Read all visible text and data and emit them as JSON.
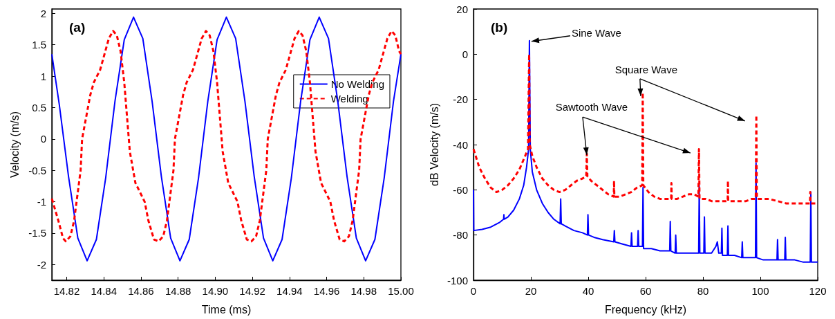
{
  "chart_data": [
    {
      "type": "line",
      "title": "(a)",
      "xlabel": "Time (ms)",
      "ylabel": "Velocity (m/s)",
      "xlim": [
        14.812,
        15.0
      ],
      "xticks": [
        14.82,
        14.84,
        14.86,
        14.88,
        {
          "value": 14.9,
          "label": "14.90"
        },
        14.92,
        14.94,
        14.96,
        14.98,
        {
          "value": 15.0,
          "label": "15.00"
        }
      ],
      "ylim": [
        -2.25,
        2.07
      ],
      "yticks": [
        -2,
        -1.5,
        -1,
        -0.5,
        0,
        0.5,
        1,
        1.5,
        2
      ],
      "grid": false,
      "legend": "right",
      "marker": "none",
      "series": [
        {
          "name": "No Welding",
          "color": "#0000ff",
          "line_style": "solid",
          "x": [
            14.812,
            14.816,
            14.821,
            14.826,
            14.831,
            14.836,
            14.841,
            14.846,
            14.851,
            14.856,
            14.861,
            14.866,
            14.871,
            14.876,
            14.881,
            14.886,
            14.891,
            14.896,
            14.901,
            14.906,
            14.911,
            14.916,
            14.921,
            14.926,
            14.931,
            14.936,
            14.941,
            14.946,
            14.951,
            14.956,
            14.961,
            14.966,
            14.971,
            14.976,
            14.981,
            14.986,
            14.991,
            14.996,
            15.0
          ],
          "values": [
            1.35,
            0.55,
            -0.6,
            -1.58,
            -1.94,
            -1.6,
            -0.62,
            0.6,
            1.58,
            1.94,
            1.6,
            0.6,
            -0.6,
            -1.58,
            -1.94,
            -1.6,
            -0.62,
            0.6,
            1.58,
            1.94,
            1.6,
            0.6,
            -0.6,
            -1.58,
            -1.94,
            -1.6,
            -0.62,
            0.6,
            1.58,
            1.94,
            1.6,
            0.6,
            -0.6,
            -1.58,
            -1.94,
            -1.6,
            -0.62,
            0.6,
            1.35
          ]
        },
        {
          "name": "Welding",
          "color": "#ff0000",
          "line_style": "dashed",
          "x": [
            14.812,
            14.8155,
            14.818,
            14.8195,
            14.822,
            14.824,
            14.8275,
            14.8283,
            14.8327,
            14.8346,
            14.838,
            14.8427,
            14.845,
            14.847,
            14.849,
            14.851,
            14.854,
            14.857,
            14.862,
            14.864,
            14.867,
            14.8695,
            14.872,
            14.874,
            14.8775,
            14.8783,
            14.8827,
            14.8846,
            14.888,
            14.8927,
            14.895,
            14.897,
            14.899,
            14.901,
            14.904,
            14.907,
            14.912,
            14.914,
            14.917,
            14.9195,
            14.922,
            14.924,
            14.9275,
            14.9283,
            14.9327,
            14.9346,
            14.938,
            14.9427,
            14.945,
            14.947,
            14.949,
            14.951,
            14.954,
            14.957,
            14.962,
            14.964,
            14.967,
            14.9695,
            14.972,
            14.974,
            14.9775,
            14.9783,
            14.9827,
            14.9846,
            14.988,
            14.9927,
            14.995,
            14.997,
            14.999,
            15.0
          ],
          "values": [
            -0.95,
            -1.3,
            -1.58,
            -1.63,
            -1.55,
            -1.3,
            -0.5,
            0,
            0.7,
            0.9,
            1.1,
            1.6,
            1.72,
            1.65,
            1.4,
            0.9,
            -0.2,
            -0.7,
            -1.0,
            -1.3,
            -1.6,
            -1.63,
            -1.55,
            -1.3,
            -0.5,
            0,
            0.7,
            0.9,
            1.1,
            1.6,
            1.72,
            1.65,
            1.4,
            0.9,
            -0.2,
            -0.7,
            -1.0,
            -1.3,
            -1.6,
            -1.63,
            -1.55,
            -1.3,
            -0.5,
            0,
            0.7,
            0.9,
            1.1,
            1.6,
            1.72,
            1.65,
            1.4,
            0.9,
            -0.2,
            -0.7,
            -1.0,
            -1.3,
            -1.6,
            -1.63,
            -1.55,
            -1.3,
            -0.5,
            0,
            0.7,
            0.9,
            1.1,
            1.6,
            1.72,
            1.65,
            1.4,
            1.35
          ]
        }
      ]
    },
    {
      "type": "line",
      "title": "(b)",
      "xlabel": "Frequency (kHz)",
      "ylabel": "dB Velocity (m/s)",
      "xlim": [
        0,
        120
      ],
      "xticks": [
        0,
        20,
        40,
        60,
        80,
        100,
        120
      ],
      "ylim": [
        -100,
        20
      ],
      "yticks": [
        -100,
        -80,
        -60,
        -40,
        -20,
        0,
        20
      ],
      "grid": false,
      "marker": "none",
      "annotations": [
        {
          "text": "Sine Wave",
          "x": 19.5,
          "y": 6
        },
        {
          "text": "Square Wave",
          "x": 59,
          "y": -17
        },
        {
          "text": "Sawtooth Wave",
          "x": 39.5,
          "y": -44
        }
      ],
      "series": [
        {
          "color": "#0000ff",
          "line_style": "solid",
          "x": [
            0,
            0.1,
            3,
            6,
            9,
            10.5,
            10.6,
            10.7,
            12,
            14,
            16,
            17.5,
            18.5,
            19.2,
            19.5,
            19.8,
            20.5,
            22,
            24,
            26,
            28,
            30.2,
            30.4,
            30.6,
            32,
            35,
            38,
            39.7,
            39.9,
            40.1,
            42,
            45,
            48.9,
            49.1,
            49.3,
            52,
            54.9,
            55.1,
            55.3,
            57.2,
            57.4,
            57.6,
            58.9,
            59.1,
            59.3,
            62,
            65,
            68.4,
            68.6,
            68.8,
            70.3,
            70.5,
            70.7,
            74,
            78.5,
            78.7,
            78.9,
            80.3,
            80.5,
            80.7,
            83,
            84.5,
            85,
            85.5,
            86.4,
            86.6,
            86.8,
            88.5,
            88.7,
            88.9,
            91,
            93.5,
            93.7,
            93.9,
            96,
            98.3,
            98.5,
            98.7,
            101,
            103,
            105.8,
            106,
            106.2,
            108.5,
            108.7,
            108.9,
            112,
            115,
            117.4,
            117.6,
            117.8,
            120
          ],
          "values": [
            -60,
            -78,
            -77.5,
            -76.5,
            -74.5,
            -73,
            -71,
            -73,
            -72,
            -69,
            -64,
            -58,
            -50,
            -42,
            6,
            -42,
            -52,
            -60,
            -66,
            -70,
            -73,
            -75,
            -64,
            -75,
            -76,
            -78,
            -79,
            -80,
            -71,
            -80,
            -81,
            -82,
            -83,
            -78,
            -83,
            -84,
            -85,
            -79,
            -85,
            -85,
            -78,
            -85,
            -85,
            -59,
            -86,
            -86,
            -87,
            -87,
            -74,
            -87,
            -88,
            -80,
            -88,
            -88,
            -88,
            -58,
            -88,
            -88,
            -72,
            -88,
            -88,
            -85,
            -83,
            -88,
            -88,
            -77,
            -89,
            -89,
            -76,
            -89,
            -89,
            -90,
            -83,
            -90,
            -90,
            -90,
            -48,
            -90,
            -91,
            -91,
            -91,
            -82,
            -91,
            -91,
            -81,
            -91,
            -91,
            -92,
            -92,
            -61,
            -92,
            -92
          ]
        },
        {
          "color": "#ff0000",
          "line_style": "dashed",
          "x": [
            0,
            2,
            4,
            6,
            8,
            10,
            12,
            14,
            16,
            18,
            19,
            19.4,
            19.6,
            20.5,
            22,
            24,
            26,
            28,
            30,
            32,
            34,
            36,
            38,
            39.3,
            39.5,
            39.7,
            41,
            43,
            45,
            47,
            48.9,
            49,
            49.1,
            51,
            53,
            55,
            57,
            58.8,
            59,
            59.2,
            61,
            63,
            65,
            67,
            68.9,
            69,
            69.1,
            71,
            73,
            75,
            77,
            78.4,
            78.6,
            78.8,
            81,
            83,
            85,
            87,
            88.6,
            88.7,
            88.8,
            91,
            93,
            95,
            97,
            98.4,
            98.6,
            98.8,
            101,
            103,
            106,
            109,
            112,
            115,
            117.3,
            117.4,
            117.5,
            120
          ],
          "values": [
            -42,
            -50,
            -55,
            -59,
            -61,
            -60,
            -58,
            -55,
            -51,
            -45,
            -42,
            0,
            -40,
            -45,
            -50,
            -55,
            -58,
            -60,
            -61,
            -60,
            -58,
            -56,
            -55,
            -54,
            -44,
            -54,
            -56,
            -58,
            -60,
            -62,
            -63,
            -56,
            -63,
            -63,
            -62,
            -61,
            -59,
            -58,
            -17,
            -58,
            -61,
            -63,
            -64,
            -64,
            -64,
            -57,
            -64,
            -64,
            -63,
            -62,
            -62,
            -63,
            -42,
            -64,
            -64,
            -65,
            -65,
            -65,
            -65,
            -56,
            -65,
            -65,
            -65,
            -65,
            -64,
            -64,
            -27,
            -64,
            -64,
            -64,
            -65,
            -66,
            -66,
            -66,
            -66,
            -61,
            -66,
            -66
          ]
        }
      ]
    }
  ]
}
